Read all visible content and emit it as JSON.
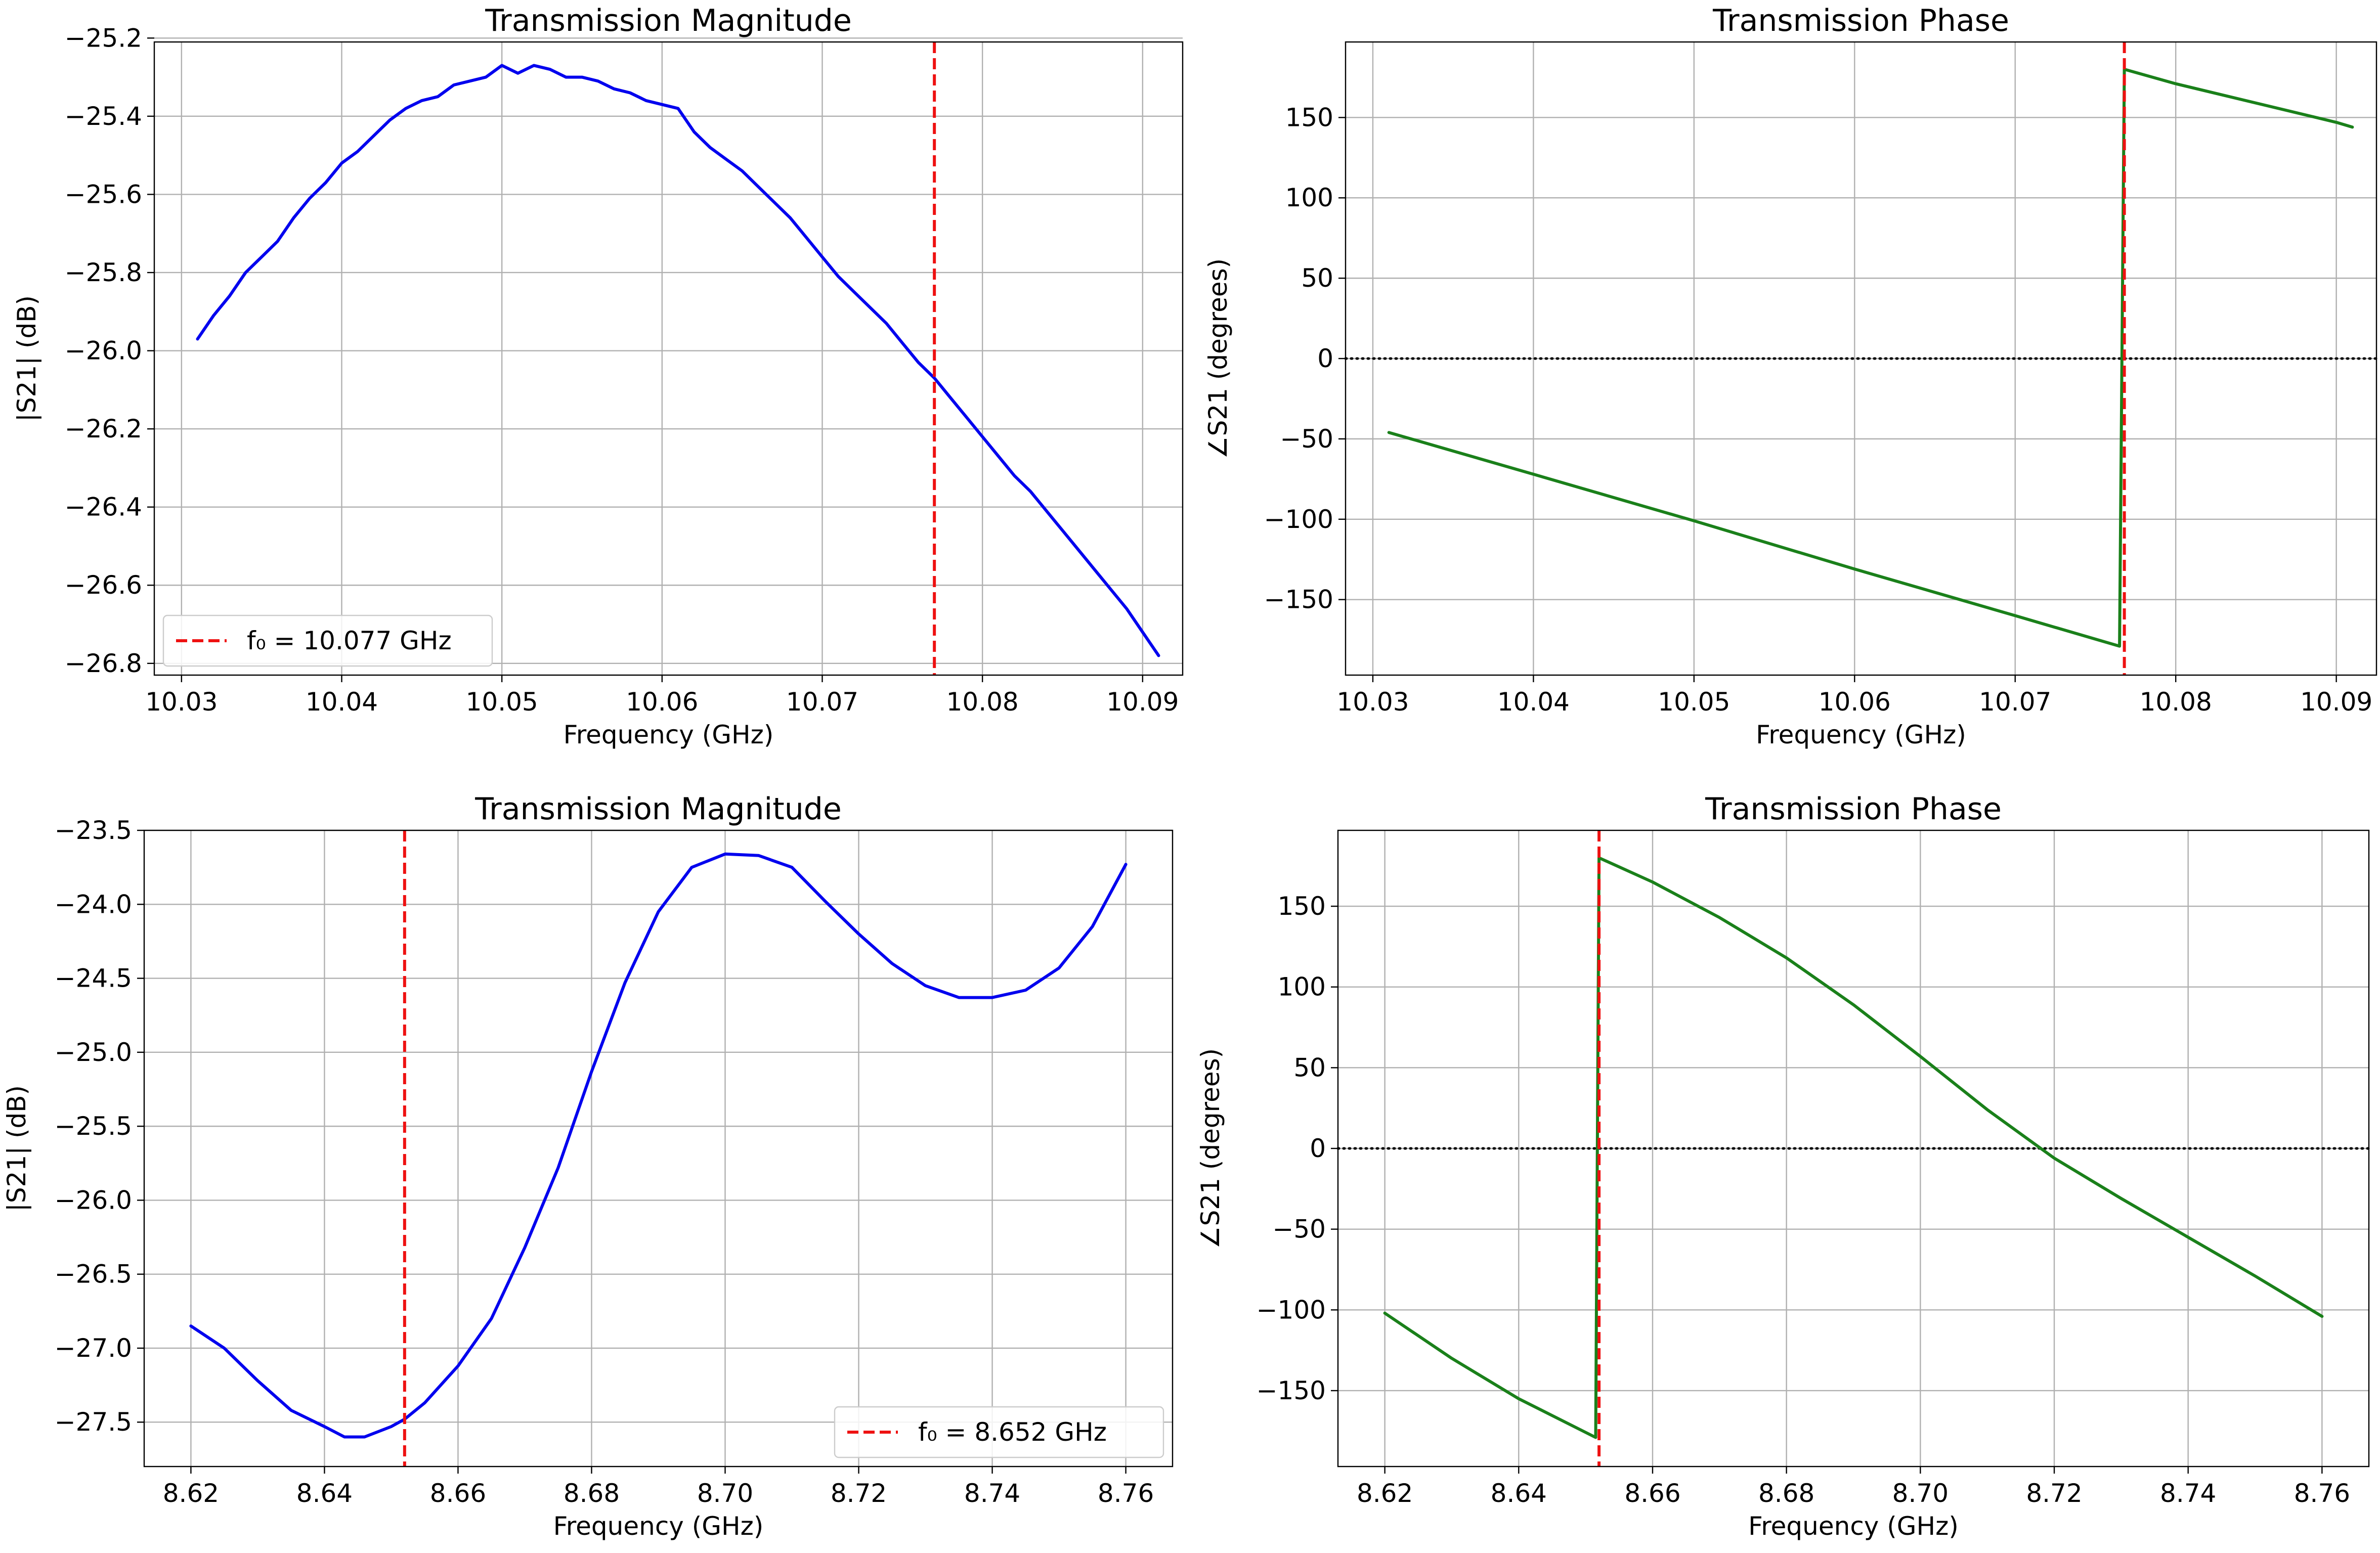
{
  "colors": {
    "magnitude_line": "#0000ee",
    "phase_line": "#1a801a",
    "marker_line": "#ee1111",
    "zero_line": "#000000"
  },
  "chart_data": [
    {
      "type": "line",
      "title": "Transmission Magnitude",
      "xlabel": "Frequency (GHz)",
      "ylabel": "|S21| (dB)",
      "xlim": [
        10.0283,
        10.0925
      ],
      "ylim": [
        -26.83,
        -25.21
      ],
      "xticks": [
        10.03,
        10.04,
        10.05,
        10.06,
        10.07,
        10.08,
        10.09
      ],
      "xtick_labels": [
        "10.03",
        "10.04",
        "10.05",
        "10.06",
        "10.07",
        "10.08",
        "10.09"
      ],
      "yticks": [
        -25.2,
        -25.4,
        -25.6,
        -25.8,
        -26.0,
        -26.2,
        -26.4,
        -26.6,
        -26.8
      ],
      "ytick_labels": [
        "−25.2",
        "−25.4",
        "−25.6",
        "−25.8",
        "−26.0",
        "−26.2",
        "−26.4",
        "−26.6",
        "−26.8"
      ],
      "grid": true,
      "series": [
        {
          "name": "|S21|",
          "color_key": "magnitude_line",
          "x": [
            10.031,
            10.032,
            10.033,
            10.034,
            10.035,
            10.036,
            10.037,
            10.038,
            10.039,
            10.04,
            10.041,
            10.042,
            10.043,
            10.044,
            10.045,
            10.046,
            10.047,
            10.048,
            10.049,
            10.05,
            10.051,
            10.052,
            10.053,
            10.054,
            10.055,
            10.056,
            10.057,
            10.058,
            10.059,
            10.06,
            10.061,
            10.062,
            10.063,
            10.064,
            10.065,
            10.066,
            10.067,
            10.068,
            10.069,
            10.07,
            10.071,
            10.072,
            10.073,
            10.074,
            10.075,
            10.076,
            10.077,
            10.078,
            10.079,
            10.08,
            10.081,
            10.082,
            10.083,
            10.084,
            10.085,
            10.086,
            10.087,
            10.088,
            10.089,
            10.09,
            10.091
          ],
          "y": [
            -25.97,
            -25.91,
            -25.86,
            -25.8,
            -25.76,
            -25.72,
            -25.66,
            -25.61,
            -25.57,
            -25.52,
            -25.49,
            -25.45,
            -25.41,
            -25.38,
            -25.36,
            -25.35,
            -25.32,
            -25.31,
            -25.3,
            -25.27,
            -25.29,
            -25.27,
            -25.28,
            -25.3,
            -25.3,
            -25.31,
            -25.33,
            -25.34,
            -25.36,
            -25.37,
            -25.38,
            -25.44,
            -25.48,
            -25.51,
            -25.54,
            -25.58,
            -25.62,
            -25.66,
            -25.71,
            -25.76,
            -25.81,
            -25.85,
            -25.89,
            -25.93,
            -25.98,
            -26.03,
            -26.07,
            -26.12,
            -26.17,
            -26.22,
            -26.27,
            -26.32,
            -26.36,
            -26.41,
            -26.46,
            -26.51,
            -26.56,
            -26.61,
            -26.66,
            -26.72,
            -26.78
          ]
        }
      ],
      "marker": {
        "x": 10.077,
        "label": "f₀ = 10.077 GHz"
      },
      "legend": {
        "position": "lower-left",
        "label": "f₀ = 10.077 GHz"
      }
    },
    {
      "type": "line",
      "title": "Transmission Phase",
      "xlabel": "Frequency (GHz)",
      "ylabel": "∠S21 (degrees)",
      "xlim": [
        10.0283,
        10.0925
      ],
      "ylim": [
        -197,
        197
      ],
      "xticks": [
        10.03,
        10.04,
        10.05,
        10.06,
        10.07,
        10.08,
        10.09
      ],
      "xtick_labels": [
        "10.03",
        "10.04",
        "10.05",
        "10.06",
        "10.07",
        "10.08",
        "10.09"
      ],
      "yticks": [
        150,
        100,
        50,
        0,
        -50,
        -100,
        -150
      ],
      "ytick_labels": [
        "150",
        "100",
        "50",
        "0",
        "−50",
        "−100",
        "−150"
      ],
      "grid": true,
      "series": [
        {
          "name": "∠S21",
          "color_key": "phase_line",
          "x": [
            10.031,
            10.04,
            10.05,
            10.06,
            10.07,
            10.0765,
            10.0768,
            10.08,
            10.09,
            10.091
          ],
          "y": [
            -46,
            -72,
            -101,
            -131,
            -160,
            -179,
            180,
            171,
            147,
            144
          ]
        }
      ],
      "marker": {
        "x": 10.0768
      },
      "zero_line": 0
    },
    {
      "type": "line",
      "title": "Transmission Magnitude",
      "xlabel": "Frequency (GHz)",
      "ylabel": "|S21| (dB)",
      "xlim": [
        8.613,
        8.767
      ],
      "ylim": [
        -27.8,
        -23.5
      ],
      "xticks": [
        8.62,
        8.64,
        8.66,
        8.68,
        8.7,
        8.72,
        8.74,
        8.76
      ],
      "xtick_labels": [
        "8.62",
        "8.64",
        "8.66",
        "8.68",
        "8.70",
        "8.72",
        "8.74",
        "8.76"
      ],
      "yticks": [
        -23.5,
        -24.0,
        -24.5,
        -25.0,
        -25.5,
        -26.0,
        -26.5,
        -27.0,
        -27.5
      ],
      "ytick_labels": [
        "−23.5",
        "−24.0",
        "−24.5",
        "−25.0",
        "−25.5",
        "−26.0",
        "−26.5",
        "−27.0",
        "−27.5"
      ],
      "grid": true,
      "series": [
        {
          "name": "|S21|",
          "color_key": "magnitude_line",
          "x": [
            8.62,
            8.625,
            8.63,
            8.635,
            8.64,
            8.643,
            8.646,
            8.65,
            8.652,
            8.655,
            8.66,
            8.665,
            8.67,
            8.675,
            8.68,
            8.685,
            8.69,
            8.695,
            8.7,
            8.705,
            8.71,
            8.715,
            8.72,
            8.725,
            8.73,
            8.735,
            8.74,
            8.745,
            8.75,
            8.755,
            8.76
          ],
          "y": [
            -26.85,
            -27.0,
            -27.22,
            -27.42,
            -27.53,
            -27.6,
            -27.6,
            -27.53,
            -27.48,
            -27.37,
            -27.12,
            -26.8,
            -26.32,
            -25.78,
            -25.13,
            -24.53,
            -24.05,
            -23.75,
            -23.66,
            -23.67,
            -23.75,
            -23.98,
            -24.2,
            -24.4,
            -24.55,
            -24.63,
            -24.63,
            -24.58,
            -24.43,
            -24.15,
            -23.73
          ]
        }
      ],
      "marker": {
        "x": 8.652,
        "label": "f₀ = 8.652 GHz"
      },
      "legend": {
        "position": "lower-right",
        "label": "f₀ = 8.652 GHz"
      }
    },
    {
      "type": "line",
      "title": "Transmission Phase",
      "xlabel": "Frequency (GHz)",
      "ylabel": "∠S21 (degrees)",
      "xlim": [
        8.613,
        8.767
      ],
      "ylim": [
        -197,
        197
      ],
      "xticks": [
        8.62,
        8.64,
        8.66,
        8.68,
        8.7,
        8.72,
        8.74,
        8.76
      ],
      "xtick_labels": [
        "8.62",
        "8.64",
        "8.66",
        "8.68",
        "8.70",
        "8.72",
        "8.74",
        "8.76"
      ],
      "yticks": [
        150,
        100,
        50,
        0,
        -50,
        -100,
        -150
      ],
      "ytick_labels": [
        "150",
        "100",
        "50",
        "0",
        "−50",
        "−100",
        "−150"
      ],
      "grid": true,
      "series": [
        {
          "name": "∠S21",
          "color_key": "phase_line",
          "x": [
            8.62,
            8.63,
            8.64,
            8.6515,
            8.652,
            8.66,
            8.67,
            8.68,
            8.69,
            8.7,
            8.71,
            8.72,
            8.73,
            8.74,
            8.75,
            8.76
          ],
          "y": [
            -102,
            -130,
            -155,
            -179,
            180,
            165,
            143,
            118,
            89,
            57,
            24,
            -6,
            -31,
            -55,
            -79,
            -104
          ]
        }
      ],
      "marker": {
        "x": 8.652
      },
      "zero_line": 0
    }
  ]
}
